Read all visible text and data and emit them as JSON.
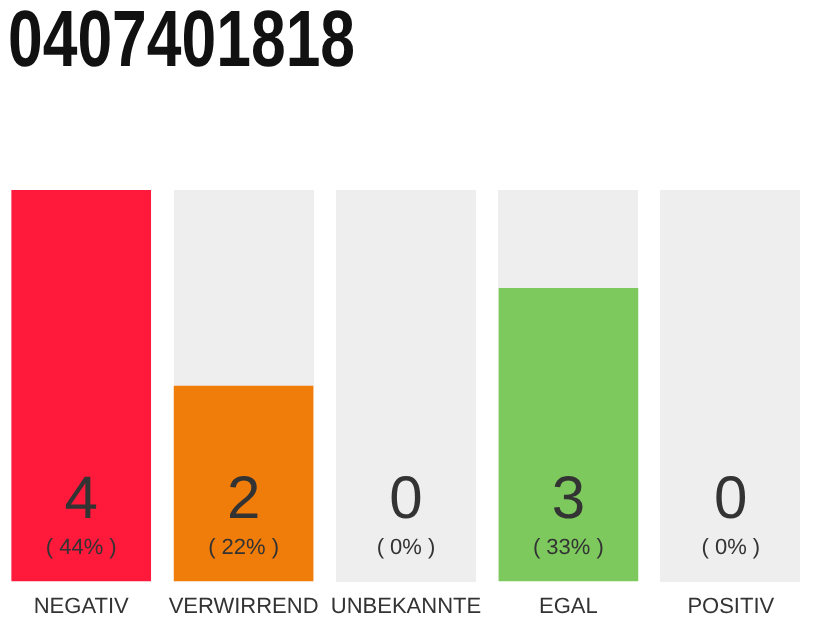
{
  "chart_data": {
    "type": "bar",
    "title": "0407401818",
    "categories": [
      "NEGATIV",
      "VERWIRREND",
      "UNBEKANNTE",
      "EGAL",
      "POSITIV"
    ],
    "values": [
      4,
      2,
      0,
      3,
      0
    ],
    "colors": [
      "#ff1a3c",
      "#f07c0a",
      "#bbbbbb",
      "#7dc95e",
      "#2e8b57"
    ],
    "value_labels": [
      "4",
      "2",
      "0",
      "3",
      "0"
    ],
    "annotations": [
      "( 44% )",
      "( 22% )",
      "( 0% )",
      "( 33% )",
      "( 0% )"
    ],
    "grid": false,
    "legend": false
  }
}
